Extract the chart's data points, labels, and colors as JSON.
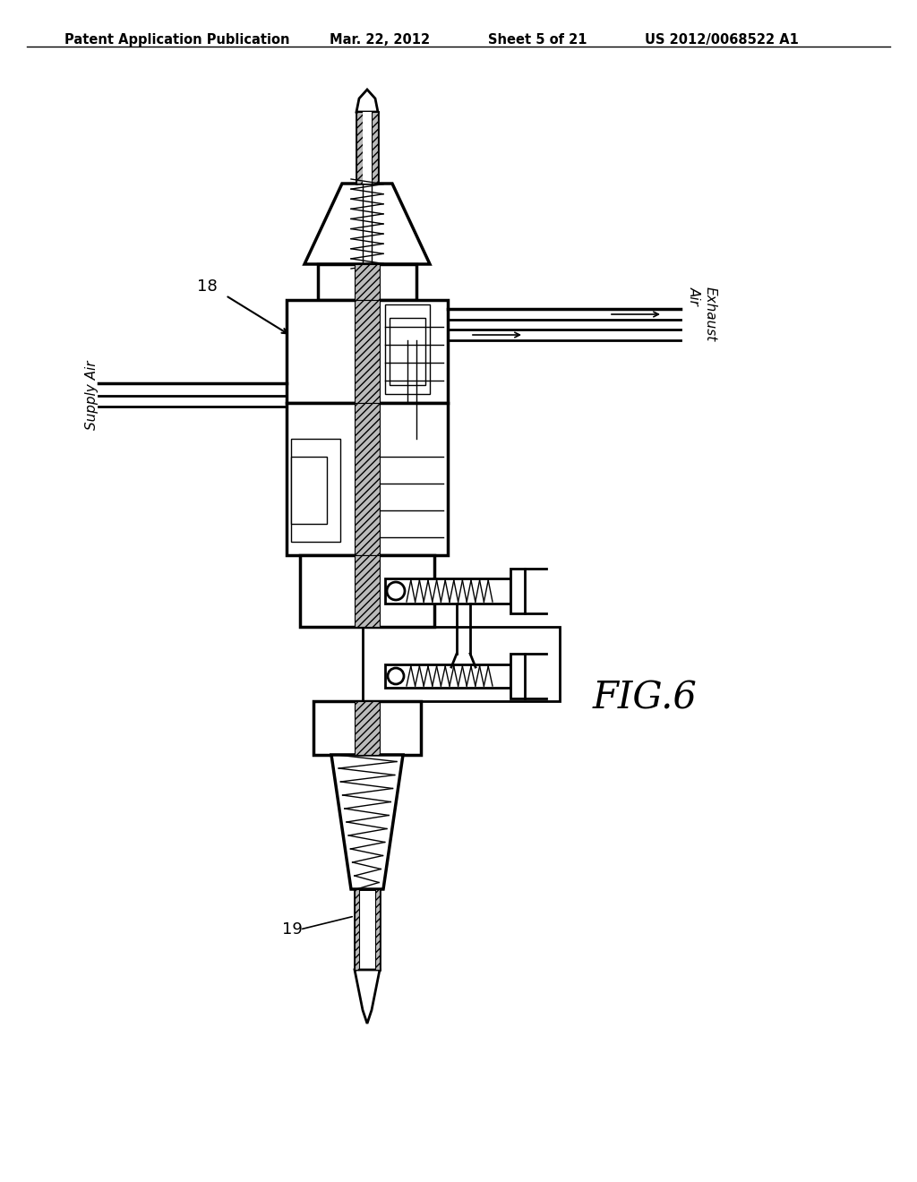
{
  "title": "Patent Application Publication",
  "date": "Mar. 22, 2012",
  "sheet": "Sheet 5 of 21",
  "patent_num": "US 2012/0068522 A1",
  "fig_label": "FIG.6",
  "label_18": "18",
  "label_19": "19",
  "supply_air": "Supply Air",
  "exhaust_air": "Exhaust\nAir",
  "bg_color": "#ffffff",
  "line_color": "#000000",
  "header_fontsize": 10.5,
  "label_fontsize": 13,
  "fig_label_fontsize": 30
}
